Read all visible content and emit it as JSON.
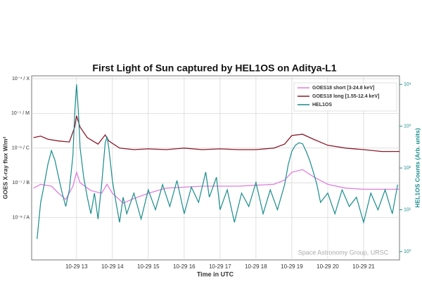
{
  "chart_data": {
    "type": "line",
    "title": "First Light of Sun captured by HEL1OS on Aditya-L1",
    "xlabel": "Time in UTC",
    "ylabel": "GOES X-ray flux W/m²",
    "y2label": "HEL1OS Counts (Arb. units)",
    "annotation": "Space Astronomy Group, URSC",
    "xlim": [
      11.75,
      22.0
    ],
    "xticks": [
      {
        "value": 13,
        "label": "10-29 13"
      },
      {
        "value": 14,
        "label": "10-29 14"
      },
      {
        "value": 15,
        "label": "10-29 15"
      },
      {
        "value": 16,
        "label": "10-29 16"
      },
      {
        "value": 17,
        "label": "10-29 17"
      },
      {
        "value": 18,
        "label": "10-29 18"
      },
      {
        "value": 19,
        "label": "10-29 19"
      },
      {
        "value": 20,
        "label": "10-29 20"
      },
      {
        "value": 21,
        "label": "10-29 21"
      }
    ],
    "ylim": [
      6e-10,
      0.00012
    ],
    "yscale": "log",
    "yticks": [
      {
        "value": 1e-08,
        "label": "10⁻⁸ / A"
      },
      {
        "value": 1e-07,
        "label": "10⁻⁷ / B"
      },
      {
        "value": 1e-06,
        "label": "10⁻⁶ / C"
      },
      {
        "value": 1e-05,
        "label": "10⁻⁵ / M"
      },
      {
        "value": 0.0001,
        "label": "10⁻⁴ / X"
      }
    ],
    "y2lim": [
      0.63,
      16000
    ],
    "y2scale": "log",
    "y2ticks": [
      {
        "value": 1,
        "label": "10⁰"
      },
      {
        "value": 10,
        "label": "10¹"
      },
      {
        "value": 100,
        "label": "10²"
      },
      {
        "value": 1000,
        "label": "10³"
      },
      {
        "value": 10000,
        "label": "10⁴"
      }
    ],
    "grid": true,
    "legend": "upper right",
    "series": [
      {
        "name": "GOES18 short  [3-24.8 keV]",
        "color": "#dd7fdd",
        "x": [
          11.8,
          12.0,
          12.3,
          12.5,
          12.7,
          12.9,
          13.0,
          13.1,
          13.4,
          13.7,
          13.85,
          14.0,
          14.3,
          14.6,
          15.0,
          15.5,
          16.0,
          16.5,
          17.0,
          17.5,
          18.0,
          18.5,
          18.8,
          19.0,
          19.3,
          19.6,
          20.0,
          20.5,
          21.0,
          21.5,
          22.0
        ],
        "values": [
          7e-08,
          9e-08,
          8e-08,
          5e-08,
          3.3e-08,
          8e-08,
          2e-07,
          1e-07,
          6e-08,
          5e-08,
          9e-08,
          5e-08,
          2.6e-08,
          3.5e-08,
          5e-08,
          7e-08,
          7.5e-08,
          8e-08,
          8e-08,
          8e-08,
          8.5e-08,
          9e-08,
          1.2e-07,
          2e-07,
          2.4e-07,
          1.5e-07,
          9e-08,
          7e-08,
          6.5e-08,
          6.5e-08,
          6.5e-08
        ]
      },
      {
        "name": "GOES18 long  [1.55-12.4 keV]",
        "color": "#8b1a2b",
        "x": [
          11.8,
          12.0,
          12.2,
          12.5,
          12.8,
          12.95,
          13.0,
          13.1,
          13.3,
          13.6,
          13.8,
          13.9,
          14.2,
          14.6,
          15.0,
          15.5,
          16.0,
          16.5,
          17.0,
          17.5,
          18.0,
          18.5,
          18.8,
          19.0,
          19.3,
          19.6,
          20.0,
          20.5,
          21.0,
          21.5,
          22.0
        ],
        "values": [
          2e-06,
          2.2e-06,
          1.8e-06,
          1.6e-06,
          1.5e-06,
          4e-06,
          8.5e-06,
          4e-06,
          2e-06,
          1.3e-06,
          2.4e-06,
          1.6e-06,
          1e-06,
          9e-07,
          9.5e-07,
          9e-07,
          1e-06,
          9e-07,
          9.5e-07,
          9e-07,
          9e-07,
          1e-06,
          1.3e-06,
          2.3e-06,
          2.5e-06,
          1.8e-06,
          1.2e-06,
          1e-06,
          9e-07,
          8e-07,
          8e-07
        ]
      },
      {
        "name": "HEL1OS",
        "color": "#1a8c8c",
        "axis": "y2",
        "x": [
          11.9,
          12.0,
          12.1,
          12.2,
          12.3,
          12.4,
          12.5,
          12.6,
          12.7,
          12.8,
          12.9,
          12.95,
          13.0,
          13.05,
          13.1,
          13.2,
          13.3,
          13.4,
          13.5,
          13.6,
          13.7,
          13.8,
          13.85,
          13.9,
          14.0,
          14.1,
          14.2,
          14.3,
          14.4,
          14.6,
          14.8,
          15.0,
          15.2,
          15.4,
          15.6,
          15.8,
          16.0,
          16.2,
          16.4,
          16.6,
          16.7,
          16.9,
          17.0,
          17.2,
          17.4,
          17.6,
          17.8,
          18.0,
          18.2,
          18.4,
          18.6,
          18.8,
          18.9,
          19.0,
          19.1,
          19.2,
          19.3,
          19.4,
          19.5,
          19.6,
          19.7,
          19.8,
          20.0,
          20.2,
          20.4,
          20.6,
          20.8,
          21.0,
          21.2,
          21.4,
          21.6,
          21.8,
          21.95
        ],
        "values": [
          2,
          15,
          40,
          120,
          260,
          150,
          60,
          25,
          12,
          30,
          200,
          2000,
          10000,
          2500,
          300,
          60,
          20,
          8,
          25,
          6,
          40,
          400,
          560,
          300,
          50,
          15,
          5,
          20,
          8,
          25,
          6,
          30,
          10,
          40,
          12,
          50,
          8,
          35,
          15,
          80,
          20,
          60,
          10,
          30,
          5,
          25,
          12,
          45,
          8,
          30,
          10,
          40,
          120,
          250,
          350,
          400,
          380,
          250,
          150,
          80,
          40,
          15,
          25,
          8,
          30,
          12,
          20,
          5,
          25,
          10,
          30,
          8,
          40
        ]
      }
    ]
  }
}
